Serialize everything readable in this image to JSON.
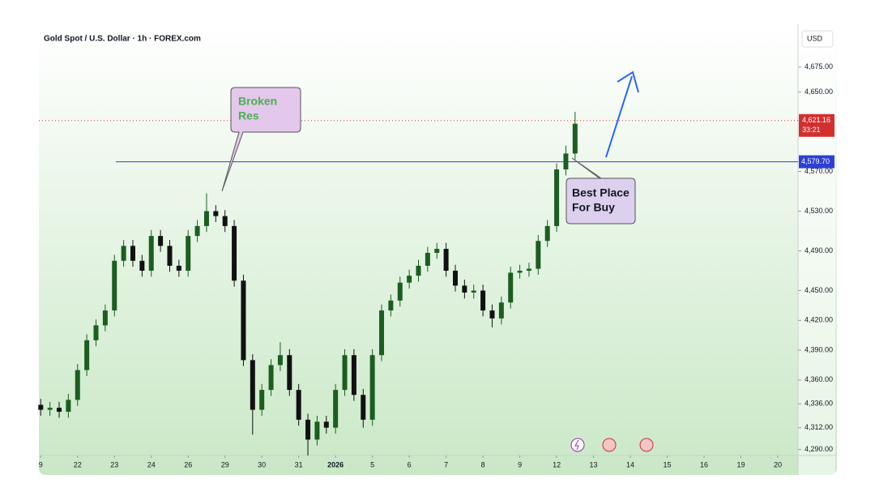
{
  "chart_data": {
    "type": "candlestick",
    "title": "Gold Spot / U.S. Dollar · 1h · FOREX.com",
    "currency": "USD",
    "up_color": "#1b5e20",
    "down_color": "#111111",
    "xlim": [
      -0.05,
      20.55
    ],
    "ylim": [
      4284,
      4714
    ],
    "xticks": [
      {
        "value": 0,
        "label": "9"
      },
      {
        "value": 1,
        "label": "22"
      },
      {
        "value": 2,
        "label": "23"
      },
      {
        "value": 3,
        "label": "24"
      },
      {
        "value": 4,
        "label": "26"
      },
      {
        "value": 5,
        "label": "29"
      },
      {
        "value": 6,
        "label": "30"
      },
      {
        "value": 7,
        "label": "31"
      },
      {
        "value": 8,
        "label": "2026"
      },
      {
        "value": 9,
        "label": "5"
      },
      {
        "value": 10,
        "label": "6"
      },
      {
        "value": 11,
        "label": "7"
      },
      {
        "value": 12,
        "label": "8"
      },
      {
        "value": 13,
        "label": "9"
      },
      {
        "value": 14,
        "label": "12"
      },
      {
        "value": 15,
        "label": "13"
      },
      {
        "value": 16,
        "label": "14"
      },
      {
        "value": 17,
        "label": "15"
      },
      {
        "value": 18,
        "label": "16"
      },
      {
        "value": 19,
        "label": "19"
      },
      {
        "value": 20,
        "label": "20"
      }
    ],
    "yticks": [
      {
        "value": 4675,
        "label": "4,675.00"
      },
      {
        "value": 4650,
        "label": "4,650.00"
      },
      {
        "value": 4570,
        "label": "4,570.00"
      },
      {
        "value": 4530,
        "label": "4,530.00"
      },
      {
        "value": 4490,
        "label": "4,490.00"
      },
      {
        "value": 4450,
        "label": "4,450.00"
      },
      {
        "value": 4420,
        "label": "4,420.00"
      },
      {
        "value": 4390,
        "label": "4,390.00"
      },
      {
        "value": 4360,
        "label": "4,360.00"
      },
      {
        "value": 4336,
        "label": "4,336.00"
      },
      {
        "value": 4312,
        "label": "4,312.00"
      },
      {
        "value": 4290,
        "label": "4,290.00"
      }
    ],
    "x": [
      0,
      0.25,
      0.5,
      0.75,
      1,
      1.25,
      1.5,
      1.75,
      2,
      2.25,
      2.5,
      2.75,
      3,
      3.25,
      3.5,
      3.75,
      4,
      4.25,
      4.5,
      4.75,
      5,
      5.25,
      5.5,
      5.75,
      6,
      6.25,
      6.5,
      6.75,
      7,
      7.25,
      7.5,
      7.75,
      8,
      8.25,
      8.5,
      8.75,
      9,
      9.25,
      9.5,
      9.75,
      10,
      10.25,
      10.5,
      10.75,
      11,
      11.25,
      11.5,
      11.75,
      12,
      12.25,
      12.5,
      12.75,
      13,
      13.25,
      13.5,
      13.75,
      14,
      14.25,
      14.5
    ],
    "open": [
      4335,
      4330,
      4332,
      4328,
      4340,
      4370,
      4400,
      4415,
      4430,
      4480,
      4495,
      4480,
      4470,
      4505,
      4495,
      4475,
      4470,
      4505,
      4515,
      4530,
      4525,
      4515,
      4460,
      4380,
      4330,
      4350,
      4375,
      4385,
      4350,
      4320,
      4300,
      4318,
      4312,
      4350,
      4385,
      4345,
      4320,
      4385,
      4430,
      4440,
      4458,
      4465,
      4475,
      4488,
      4492,
      4470,
      4455,
      4448,
      4450,
      4430,
      4422,
      4438,
      4468,
      4470,
      4472,
      4500,
      4515,
      4572,
      4588
    ],
    "high": [
      4341,
      4338,
      4338,
      4346,
      4376,
      4406,
      4421,
      4436,
      4486,
      4501,
      4501,
      4486,
      4511,
      4511,
      4501,
      4481,
      4511,
      4521,
      4548,
      4536,
      4531,
      4521,
      4466,
      4386,
      4356,
      4381,
      4398,
      4391,
      4356,
      4326,
      4324,
      4324,
      4356,
      4391,
      4391,
      4351,
      4391,
      4436,
      4446,
      4464,
      4471,
      4481,
      4494,
      4498,
      4498,
      4476,
      4461,
      4456,
      4456,
      4436,
      4444,
      4474,
      4476,
      4478,
      4506,
      4521,
      4578,
      4596,
      4630
    ],
    "low": [
      4324,
      4324,
      4322,
      4322,
      4334,
      4364,
      4394,
      4409,
      4424,
      4474,
      4474,
      4464,
      4464,
      4489,
      4469,
      4464,
      4464,
      4499,
      4509,
      4519,
      4509,
      4454,
      4374,
      4305,
      4324,
      4344,
      4369,
      4344,
      4314,
      4284,
      4294,
      4306,
      4306,
      4344,
      4339,
      4312,
      4314,
      4379,
      4424,
      4434,
      4452,
      4459,
      4469,
      4482,
      4464,
      4449,
      4442,
      4442,
      4424,
      4413,
      4416,
      4432,
      4462,
      4464,
      4466,
      4494,
      4509,
      4566,
      4582
    ],
    "close": [
      4330,
      4332,
      4328,
      4340,
      4370,
      4400,
      4415,
      4430,
      4480,
      4495,
      4480,
      4470,
      4505,
      4495,
      4475,
      4470,
      4505,
      4515,
      4530,
      4525,
      4515,
      4460,
      4380,
      4330,
      4350,
      4375,
      4385,
      4350,
      4320,
      4300,
      4318,
      4312,
      4350,
      4385,
      4345,
      4320,
      4385,
      4430,
      4440,
      4458,
      4465,
      4475,
      4488,
      4492,
      4470,
      4455,
      4448,
      4450,
      4430,
      4422,
      4438,
      4468,
      4470,
      4472,
      4500,
      4515,
      4572,
      4588,
      4618
    ],
    "level": {
      "value": 4579.7,
      "label": "4,579.70",
      "color": "#2d3fd6"
    },
    "last_price": {
      "value": 4621.16,
      "label": "4,621.16",
      "countdown": "33:21",
      "color": "#d32f2f"
    },
    "annotations": [
      {
        "lines": [
          "Broken",
          "Res"
        ]
      },
      {
        "lines": [
          "Best Place",
          "For Buy"
        ]
      }
    ]
  }
}
